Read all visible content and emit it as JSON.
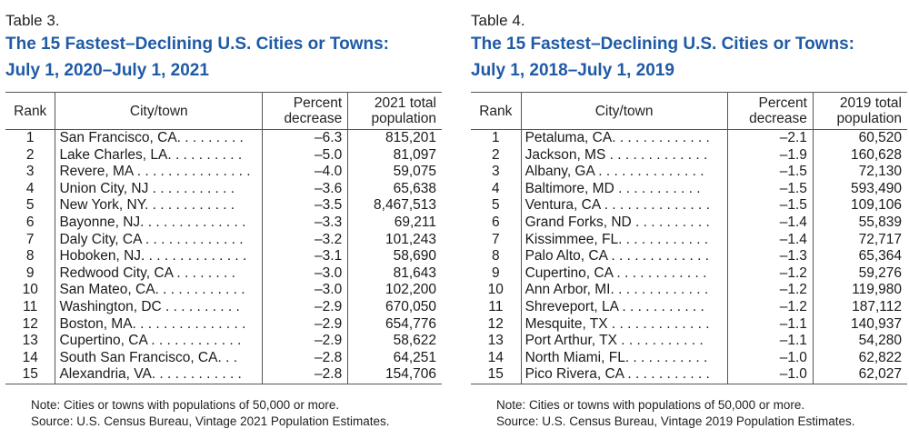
{
  "tables": [
    {
      "label": "Table 3.",
      "title_line1": "The 15 Fastest–Declining U.S. Cities or Towns:",
      "title_line2": "July 1, 2020–July 1, 2021",
      "headers": {
        "rank": "Rank",
        "city": "City/town",
        "pct_line1": "Percent",
        "pct_line2": "decrease",
        "pop_line1": "2021 total",
        "pop_line2": "population"
      },
      "rows": [
        {
          "rank": "1",
          "city": "San Francisco, CA. . . . . . . . .",
          "pct": "–6.3",
          "pop": "815,201"
        },
        {
          "rank": "2",
          "city": "Lake Charles, LA. . . . . . . . . .",
          "pct": "–5.0",
          "pop": "81,097"
        },
        {
          "rank": "3",
          "city": "Revere, MA . . . . . . . . . . . . . . .",
          "pct": "–4.0",
          "pop": "59,075"
        },
        {
          "rank": "4",
          "city": "Union City, NJ . . . . . . . . . . .",
          "pct": "–3.6",
          "pop": "65,638"
        },
        {
          "rank": "5",
          "city": "New York, NY. . . . . . . . . . . .",
          "pct": "–3.5",
          "pop": "8,467,513"
        },
        {
          "rank": "6",
          "city": "Bayonne, NJ. . . . . . . . . . . . . .",
          "pct": "–3.3",
          "pop": "69,211"
        },
        {
          "rank": "7",
          "city": "Daly City, CA . . . . . . . . . . . . .",
          "pct": "–3.2",
          "pop": "101,243"
        },
        {
          "rank": "8",
          "city": "Hoboken, NJ. . . . . . . . . . . . . .",
          "pct": "–3.1",
          "pop": "58,690"
        },
        {
          "rank": "9",
          "city": "Redwood City, CA . . . . . . . .",
          "pct": "–3.0",
          "pop": "81,643"
        },
        {
          "rank": "10",
          "city": "San Mateo, CA. . . . . . . . . . . .",
          "pct": "–3.0",
          "pop": "102,200"
        },
        {
          "rank": "11",
          "city": "Washington, DC . . . . . . . . . .",
          "pct": "–2.9",
          "pop": "670,050"
        },
        {
          "rank": "12",
          "city": "Boston, MA. . . . . . . . . . . . . . .",
          "pct": "–2.9",
          "pop": "654,776"
        },
        {
          "rank": "13",
          "city": "Cupertino, CA . . . . . . . . . . . .",
          "pct": "–2.9",
          "pop": "58,622"
        },
        {
          "rank": "14",
          "city": "South San Francisco, CA. . .",
          "pct": "–2.8",
          "pop": "64,251"
        },
        {
          "rank": "15",
          "city": "Alexandria, VA. . . . . . . . . . . .",
          "pct": "–2.8",
          "pop": "154,706"
        }
      ],
      "note": "Note: Cities or towns with populations of 50,000 or more.",
      "source": "Source: U.S. Census Bureau, Vintage 2021 Population Estimates."
    },
    {
      "label": "Table 4.",
      "title_line1": "The 15 Fastest–Declining U.S. Cities or Towns:",
      "title_line2": "July 1, 2018–July 1, 2019",
      "headers": {
        "rank": "Rank",
        "city": "City/town",
        "pct_line1": "Percent",
        "pct_line2": "decrease",
        "pop_line1": "2019 total",
        "pop_line2": "population"
      },
      "rows": [
        {
          "rank": "1",
          "city": "Petaluma, CA. . . . . . . . . . . . .",
          "pct": "–2.1",
          "pop": "60,520"
        },
        {
          "rank": "2",
          "city": "Jackson, MS . . . . . . . . . . . . .",
          "pct": "–1.9",
          "pop": "160,628"
        },
        {
          "rank": "3",
          "city": "Albany, GA . . . . . . . . . . . . . .",
          "pct": "–1.5",
          "pop": "72,130"
        },
        {
          "rank": "4",
          "city": "Baltimore, MD . . . . . . . . . . .",
          "pct": "–1.5",
          "pop": "593,490"
        },
        {
          "rank": "5",
          "city": "Ventura, CA . . . . . . . . . . . . . .",
          "pct": "–1.5",
          "pop": "109,106"
        },
        {
          "rank": "6",
          "city": "Grand Forks, ND . . . . . . . . . .",
          "pct": "–1.4",
          "pop": "55,839"
        },
        {
          "rank": "7",
          "city": "Kissimmee, FL. . . . . . . . . . . .",
          "pct": "–1.4",
          "pop": "72,717"
        },
        {
          "rank": "8",
          "city": "Palo Alto, CA . . . . . . . . . . . . .",
          "pct": "–1.3",
          "pop": "65,364"
        },
        {
          "rank": "9",
          "city": "Cupertino, CA . . . . . . . . . . . .",
          "pct": "–1.2",
          "pop": "59,276"
        },
        {
          "rank": "10",
          "city": "Ann Arbor, MI. . . . . . . . . . . . .",
          "pct": "–1.2",
          "pop": "119,980"
        },
        {
          "rank": "11",
          "city": "Shreveport, LA . . . . . . . . . . .",
          "pct": "–1.2",
          "pop": "187,112"
        },
        {
          "rank": "12",
          "city": "Mesquite, TX . . . . . . . . . . . . .",
          "pct": "–1.1",
          "pop": "140,937"
        },
        {
          "rank": "13",
          "city": "Port Arthur, TX . . . . . . . . . . .",
          "pct": "–1.1",
          "pop": "54,280"
        },
        {
          "rank": "14",
          "city": "North Miami, FL. . . . . . . . . . .",
          "pct": "–1.0",
          "pop": "62,822"
        },
        {
          "rank": "15",
          "city": "Pico Rivera, CA . . . . . . . . . . .",
          "pct": "–1.0",
          "pop": "62,027"
        }
      ],
      "note": "Note: Cities or towns with populations of 50,000 or more.",
      "source": "Source: U.S. Census Bureau, Vintage 2019 Population Estimates."
    }
  ],
  "colors": {
    "title": "#1f5aa6",
    "rules": "#555555",
    "text": "#1a1a1a"
  }
}
